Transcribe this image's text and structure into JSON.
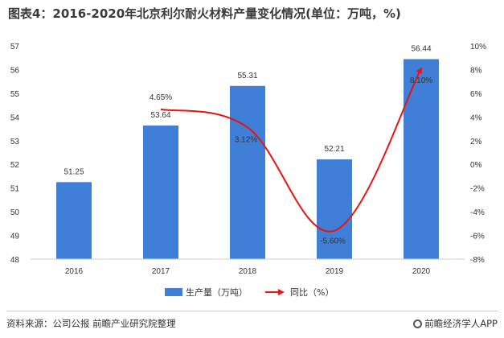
{
  "title": "图表4：2016-2020年北京利尔耐火材料产量变化情况(单位：万吨，%)",
  "footer": {
    "source": "资料来源：公司公报 前瞻产业研究院整理",
    "brand": "前瞻经济学人APP"
  },
  "colors": {
    "bar": "#3f7fd8",
    "line": "#e8140f"
  },
  "chart_data": {
    "type": "bar",
    "categories": [
      "2016",
      "2017",
      "2018",
      "2019",
      "2020"
    ],
    "series": [
      {
        "name": "生产量（万吨）",
        "type": "bar",
        "axis": "left",
        "values": [
          51.25,
          53.64,
          55.31,
          52.21,
          56.44
        ]
      },
      {
        "name": "同比（%）",
        "type": "line",
        "axis": "right",
        "values": [
          null,
          4.65,
          3.12,
          -5.6,
          8.1
        ],
        "labels": [
          "",
          "4.65%",
          "3.12%",
          "-5.60%",
          "8.10%"
        ]
      }
    ],
    "ylim_left": [
      48,
      57
    ],
    "yticks_left": [
      "48",
      "49",
      "50",
      "51",
      "52",
      "53",
      "54",
      "55",
      "56",
      "57"
    ],
    "ylim_right": [
      -8,
      10
    ],
    "yticks_right": [
      "-8%",
      "-6%",
      "-4%",
      "-2%",
      "0%",
      "2%",
      "4%",
      "6%",
      "8%",
      "10%"
    ],
    "bar_labels": [
      "51.25",
      "53.64",
      "55.31",
      "52.21",
      "56.44"
    ],
    "legend_position": "bottom",
    "grid": false
  }
}
